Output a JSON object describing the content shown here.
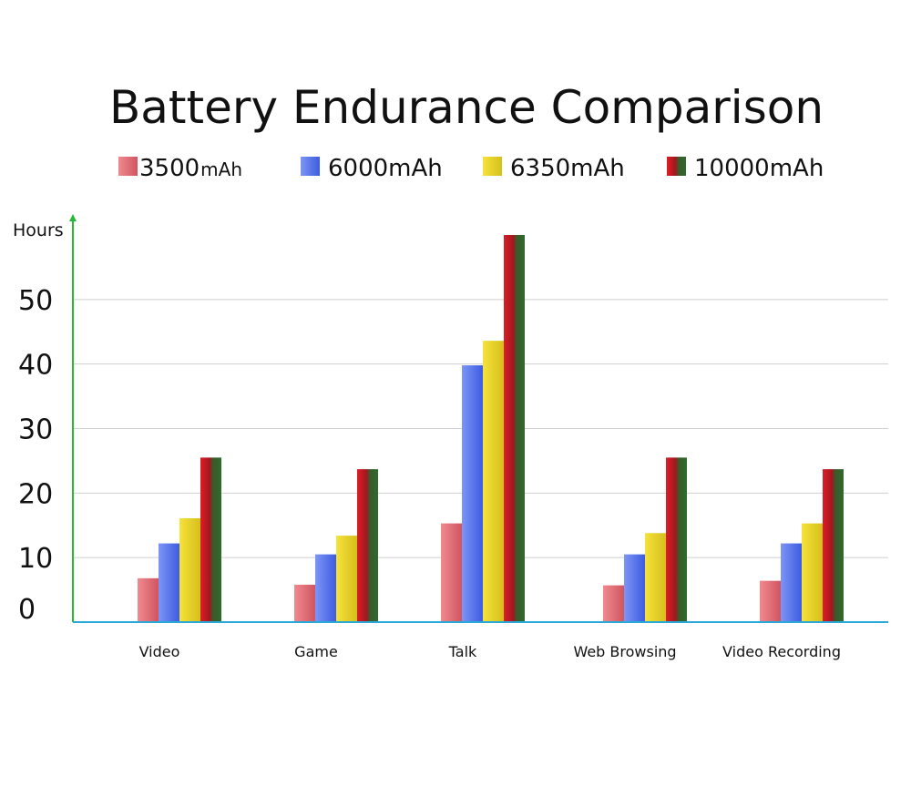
{
  "chart_data": {
    "type": "bar",
    "title": "Battery Endurance Comparison",
    "xlabel": "",
    "ylabel": "Hours",
    "ylim": [
      0,
      60
    ],
    "yticks": [
      0,
      10,
      20,
      30,
      40,
      50
    ],
    "grid": true,
    "legend_position": "top",
    "categories": [
      "Video",
      "Game",
      "Talk",
      "Web Browsing",
      "Video Recording"
    ],
    "series": [
      {
        "name": "3500mAh",
        "name_number": "3500",
        "name_unit": "mAh",
        "color_light": "#f08a8e",
        "color_dark": "#d05560",
        "values": [
          6.8,
          5.8,
          15.3,
          5.7,
          6.4
        ]
      },
      {
        "name": "6000mAh",
        "color_light": "#7d95f5",
        "color_dark": "#3d5ce0",
        "values": [
          12.2,
          10.5,
          39.8,
          10.5,
          12.2
        ]
      },
      {
        "name": "6350mAh",
        "color_light": "#f5e23a",
        "color_dark": "#d6bf1c",
        "values": [
          16.1,
          13.4,
          43.6,
          13.8,
          15.3
        ]
      },
      {
        "name": "10000mAh",
        "color_light": "#e01c25",
        "color_dark": "#2e6a2e",
        "values": [
          25.5,
          23.7,
          60.0,
          25.5,
          23.7
        ]
      }
    ]
  }
}
